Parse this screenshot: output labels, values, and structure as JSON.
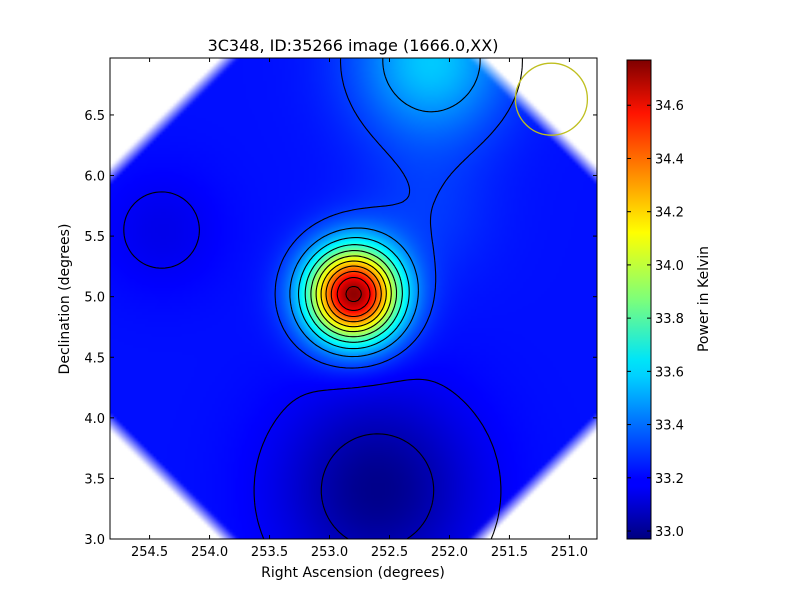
{
  "chart_data": {
    "type": "heatmap",
    "title": "3C348, ID:35266 image (1666.0,XX)",
    "xlabel": "Right Ascension (degrees)",
    "ylabel": "Declination (degrees)",
    "colorbar_label": "Power in Kelvin",
    "xlim": [
      254.83,
      250.77
    ],
    "ylim": [
      3.0,
      6.97
    ],
    "x_ticks": [
      254.5,
      254.0,
      253.5,
      253.0,
      252.5,
      252.0,
      251.5,
      251.0
    ],
    "x_tick_labels": [
      "254.5",
      "254.0",
      "253.5",
      "253.0",
      "252.5",
      "252.0",
      "251.5",
      "251.0"
    ],
    "y_ticks": [
      3.0,
      3.5,
      4.0,
      4.5,
      5.0,
      5.5,
      6.0,
      6.5
    ],
    "y_tick_labels": [
      "3.0",
      "3.5",
      "4.0",
      "4.5",
      "5.0",
      "5.5",
      "6.0",
      "6.5"
    ],
    "colorbar_range": [
      32.97,
      34.77
    ],
    "colorbar_ticks": [
      33.0,
      33.2,
      33.4,
      33.6,
      33.8,
      34.0,
      34.2,
      34.4,
      34.6
    ],
    "colorbar_tick_labels": [
      "33.0",
      "33.2",
      "33.4",
      "33.6",
      "33.8",
      "34.0",
      "34.2",
      "34.4",
      "34.6"
    ],
    "colormap": "jet",
    "contours": true,
    "grid": false,
    "peak": {
      "ra": 252.8,
      "dec": 5.02,
      "value": 34.77
    },
    "secondary_max": {
      "ra": 252.15,
      "dec": 6.95,
      "value": 33.55
    },
    "minimum": {
      "ra": 252.6,
      "dec": 3.4,
      "value": 32.98
    },
    "beam_circle": {
      "ra": 251.15,
      "dec": 6.63,
      "radius_deg": 0.3,
      "color": "#bfbf1f"
    }
  }
}
